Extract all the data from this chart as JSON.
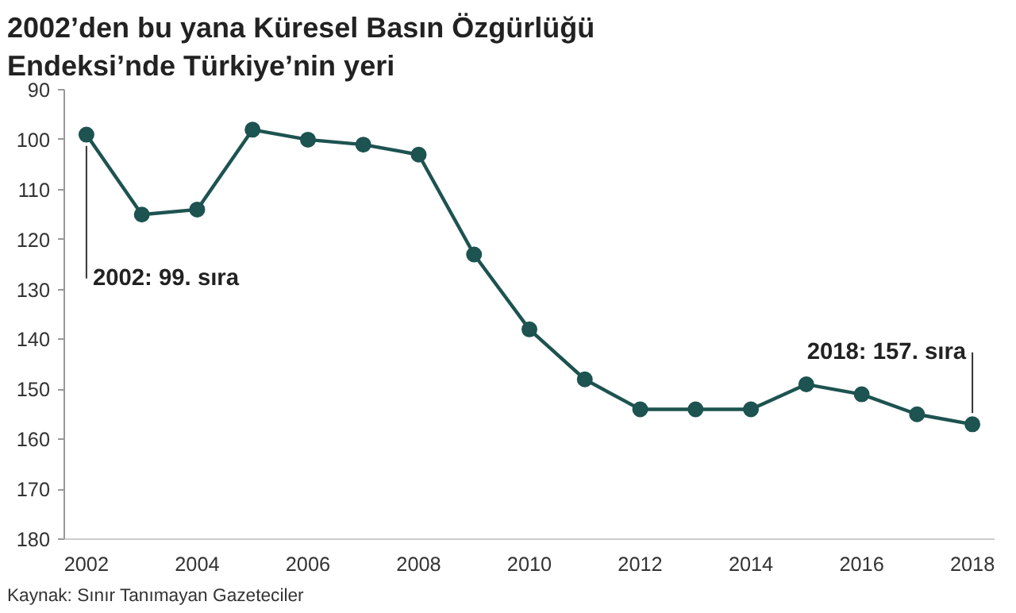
{
  "chart_data": {
    "type": "line",
    "title": "2002’den bu yana Küresel Basın Özgürlüğü\nEndeksi’nde Türkiye’nin yeri",
    "x": [
      2002,
      2003,
      2004,
      2005,
      2006,
      2007,
      2008,
      2009,
      2010,
      2011,
      2012,
      2013,
      2014,
      2015,
      2016,
      2017,
      2018
    ],
    "series": [
      {
        "color": "#1d5350",
        "values": [
          99,
          115,
          114,
          98,
          100,
          101,
          103,
          123,
          138,
          148,
          154,
          154,
          154,
          149,
          151,
          155,
          157
        ]
      }
    ],
    "xlim": [
      2001.6,
      2018.4
    ],
    "xticks": [
      2002,
      2004,
      2006,
      2008,
      2010,
      2012,
      2014,
      2016,
      2018
    ],
    "ylim": [
      180,
      90
    ],
    "yticks": [
      90,
      100,
      110,
      120,
      130,
      140,
      150,
      160,
      170,
      180
    ],
    "marker": "circle",
    "grid": false,
    "annotations": [
      {
        "text": "2002: 99. sıra",
        "x": 2002,
        "y": 99
      },
      {
        "text": "2018: 157. sıra",
        "x": 2018,
        "y": 157
      },
      "Kaynak: Sınır Tanımayan Gazeteciler"
    ]
  }
}
